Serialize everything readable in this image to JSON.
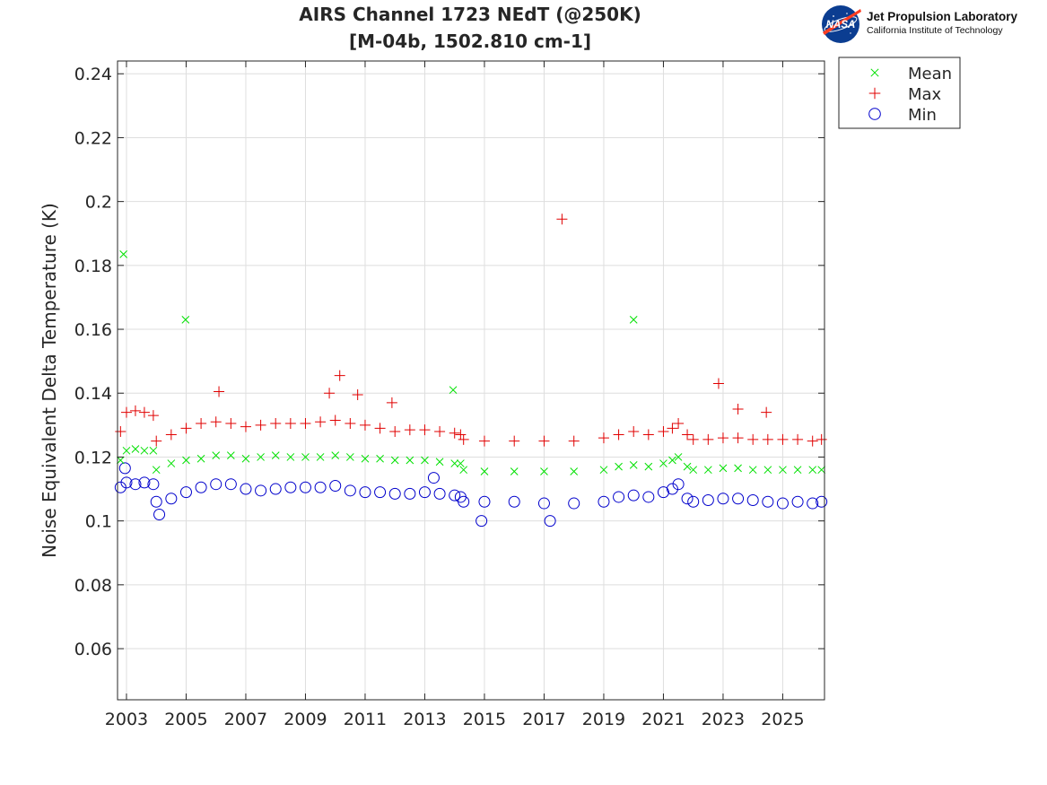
{
  "logo": {
    "agency": "NASA",
    "org_name": "Jet Propulsion Laboratory",
    "org_sub": "California Institute of Technology"
  },
  "colors": {
    "mean": "#00e000",
    "max": "#e00000",
    "min": "#0000cc"
  },
  "chart_data": {
    "type": "scatter",
    "title": "AIRS Channel 1723 NEdT (@250K)",
    "subtitle": "[M-04b, 1502.810 cm-1]",
    "xlabel": "",
    "ylabel": "Noise Equivalent Delta Temperature (K)",
    "xlim": [
      2002.7,
      2026.4
    ],
    "ylim": [
      0.044,
      0.244
    ],
    "x_ticks": [
      "2003",
      "2005",
      "2007",
      "2009",
      "2011",
      "2013",
      "2015",
      "2017",
      "2019",
      "2021",
      "2023",
      "2025"
    ],
    "y_ticks": [
      "0.06",
      "0.08",
      "0.1",
      "0.12",
      "0.14",
      "0.16",
      "0.18",
      "0.2",
      "0.22",
      "0.24"
    ],
    "grid": true,
    "legend_position": "outside-top-right",
    "series": [
      {
        "name": "Mean",
        "marker": "x",
        "x": [
          2002.8,
          2003.0,
          2003.3,
          2003.6,
          2003.9,
          2004.0,
          2004.5,
          2005.0,
          2005.5,
          2006.0,
          2006.5,
          2007.0,
          2007.5,
          2008.0,
          2008.5,
          2009.0,
          2009.5,
          2010.0,
          2010.5,
          2011.0,
          2011.5,
          2012.0,
          2012.5,
          2013.0,
          2013.5,
          2014.0,
          2014.2,
          2014.3,
          2015.0,
          2016.0,
          2017.0,
          2018.0,
          2019.0,
          2019.5,
          2020.0,
          2020.5,
          2021.0,
          2021.3,
          2021.5,
          2021.8,
          2022.0,
          2022.5,
          2023.0,
          2023.5,
          2024.0,
          2024.5,
          2025.0,
          2025.5,
          2026.0,
          2026.3,
          2002.9,
          2004.98,
          2013.95,
          2020.0
        ],
        "y": [
          0.119,
          0.122,
          0.1225,
          0.122,
          0.122,
          0.116,
          0.118,
          0.119,
          0.1195,
          0.1205,
          0.1205,
          0.1195,
          0.12,
          0.1205,
          0.12,
          0.12,
          0.12,
          0.1205,
          0.12,
          0.1195,
          0.1195,
          0.119,
          0.119,
          0.119,
          0.1185,
          0.118,
          0.118,
          0.116,
          0.1155,
          0.1155,
          0.1155,
          0.1155,
          0.116,
          0.117,
          0.1175,
          0.117,
          0.118,
          0.119,
          0.12,
          0.117,
          0.116,
          0.116,
          0.1165,
          0.1165,
          0.116,
          0.116,
          0.116,
          0.116,
          0.116,
          0.116,
          0.1835,
          0.163,
          0.141,
          0.163
        ]
      },
      {
        "name": "Max",
        "marker": "+",
        "x": [
          2002.8,
          2003.0,
          2003.3,
          2003.6,
          2003.9,
          2004.0,
          2004.5,
          2005.0,
          2005.5,
          2006.0,
          2006.5,
          2007.0,
          2007.5,
          2008.0,
          2008.5,
          2009.0,
          2009.5,
          2010.0,
          2010.5,
          2011.0,
          2011.5,
          2012.0,
          2012.5,
          2013.0,
          2013.5,
          2014.0,
          2014.2,
          2014.3,
          2015.0,
          2016.0,
          2017.0,
          2018.0,
          2019.0,
          2019.5,
          2020.0,
          2020.5,
          2021.0,
          2021.3,
          2021.5,
          2021.8,
          2022.0,
          2022.5,
          2023.0,
          2023.5,
          2024.0,
          2024.5,
          2025.0,
          2025.5,
          2026.0,
          2026.3,
          2017.6,
          2010.15,
          2022.85,
          2006.1,
          2009.8,
          2010.75,
          2023.5,
          2024.45,
          2011.9
        ],
        "y": [
          0.128,
          0.134,
          0.1345,
          0.134,
          0.133,
          0.125,
          0.127,
          0.129,
          0.1305,
          0.131,
          0.1305,
          0.1295,
          0.13,
          0.1305,
          0.1305,
          0.1305,
          0.131,
          0.1315,
          0.1305,
          0.13,
          0.129,
          0.128,
          0.1285,
          0.1285,
          0.128,
          0.1275,
          0.127,
          0.1255,
          0.125,
          0.125,
          0.125,
          0.125,
          0.126,
          0.127,
          0.128,
          0.127,
          0.128,
          0.129,
          0.1305,
          0.127,
          0.1255,
          0.1255,
          0.126,
          0.126,
          0.1255,
          0.1255,
          0.1255,
          0.1255,
          0.125,
          0.1255,
          0.1945,
          0.1455,
          0.143,
          0.1405,
          0.14,
          0.1395,
          0.135,
          0.134,
          0.137
        ]
      },
      {
        "name": "Min",
        "marker": "o",
        "x": [
          2002.8,
          2003.0,
          2003.3,
          2003.6,
          2003.9,
          2004.0,
          2004.5,
          2005.0,
          2005.5,
          2006.0,
          2006.5,
          2007.0,
          2007.5,
          2008.0,
          2008.5,
          2009.0,
          2009.5,
          2010.0,
          2010.5,
          2011.0,
          2011.5,
          2012.0,
          2012.5,
          2013.0,
          2013.5,
          2014.0,
          2014.2,
          2014.3,
          2015.0,
          2016.0,
          2017.0,
          2018.0,
          2019.0,
          2019.5,
          2020.0,
          2020.5,
          2021.0,
          2021.3,
          2021.5,
          2021.8,
          2022.0,
          2022.5,
          2023.0,
          2023.5,
          2024.0,
          2024.5,
          2025.0,
          2025.5,
          2026.0,
          2026.3,
          2004.1,
          2014.9,
          2017.2,
          2002.95,
          2013.3
        ],
        "y": [
          0.1105,
          0.112,
          0.1115,
          0.112,
          0.1115,
          0.106,
          0.107,
          0.109,
          0.1105,
          0.1115,
          0.1115,
          0.11,
          0.1095,
          0.11,
          0.1105,
          0.1105,
          0.1105,
          0.111,
          0.1095,
          0.109,
          0.109,
          0.1085,
          0.1085,
          0.109,
          0.1085,
          0.108,
          0.1075,
          0.106,
          0.106,
          0.106,
          0.1055,
          0.1055,
          0.106,
          0.1075,
          0.108,
          0.1075,
          0.109,
          0.11,
          0.1115,
          0.107,
          0.106,
          0.1065,
          0.107,
          0.107,
          0.1065,
          0.106,
          0.1055,
          0.106,
          0.1055,
          0.106,
          0.102,
          0.1,
          0.1,
          0.1165,
          0.1135
        ]
      }
    ]
  }
}
